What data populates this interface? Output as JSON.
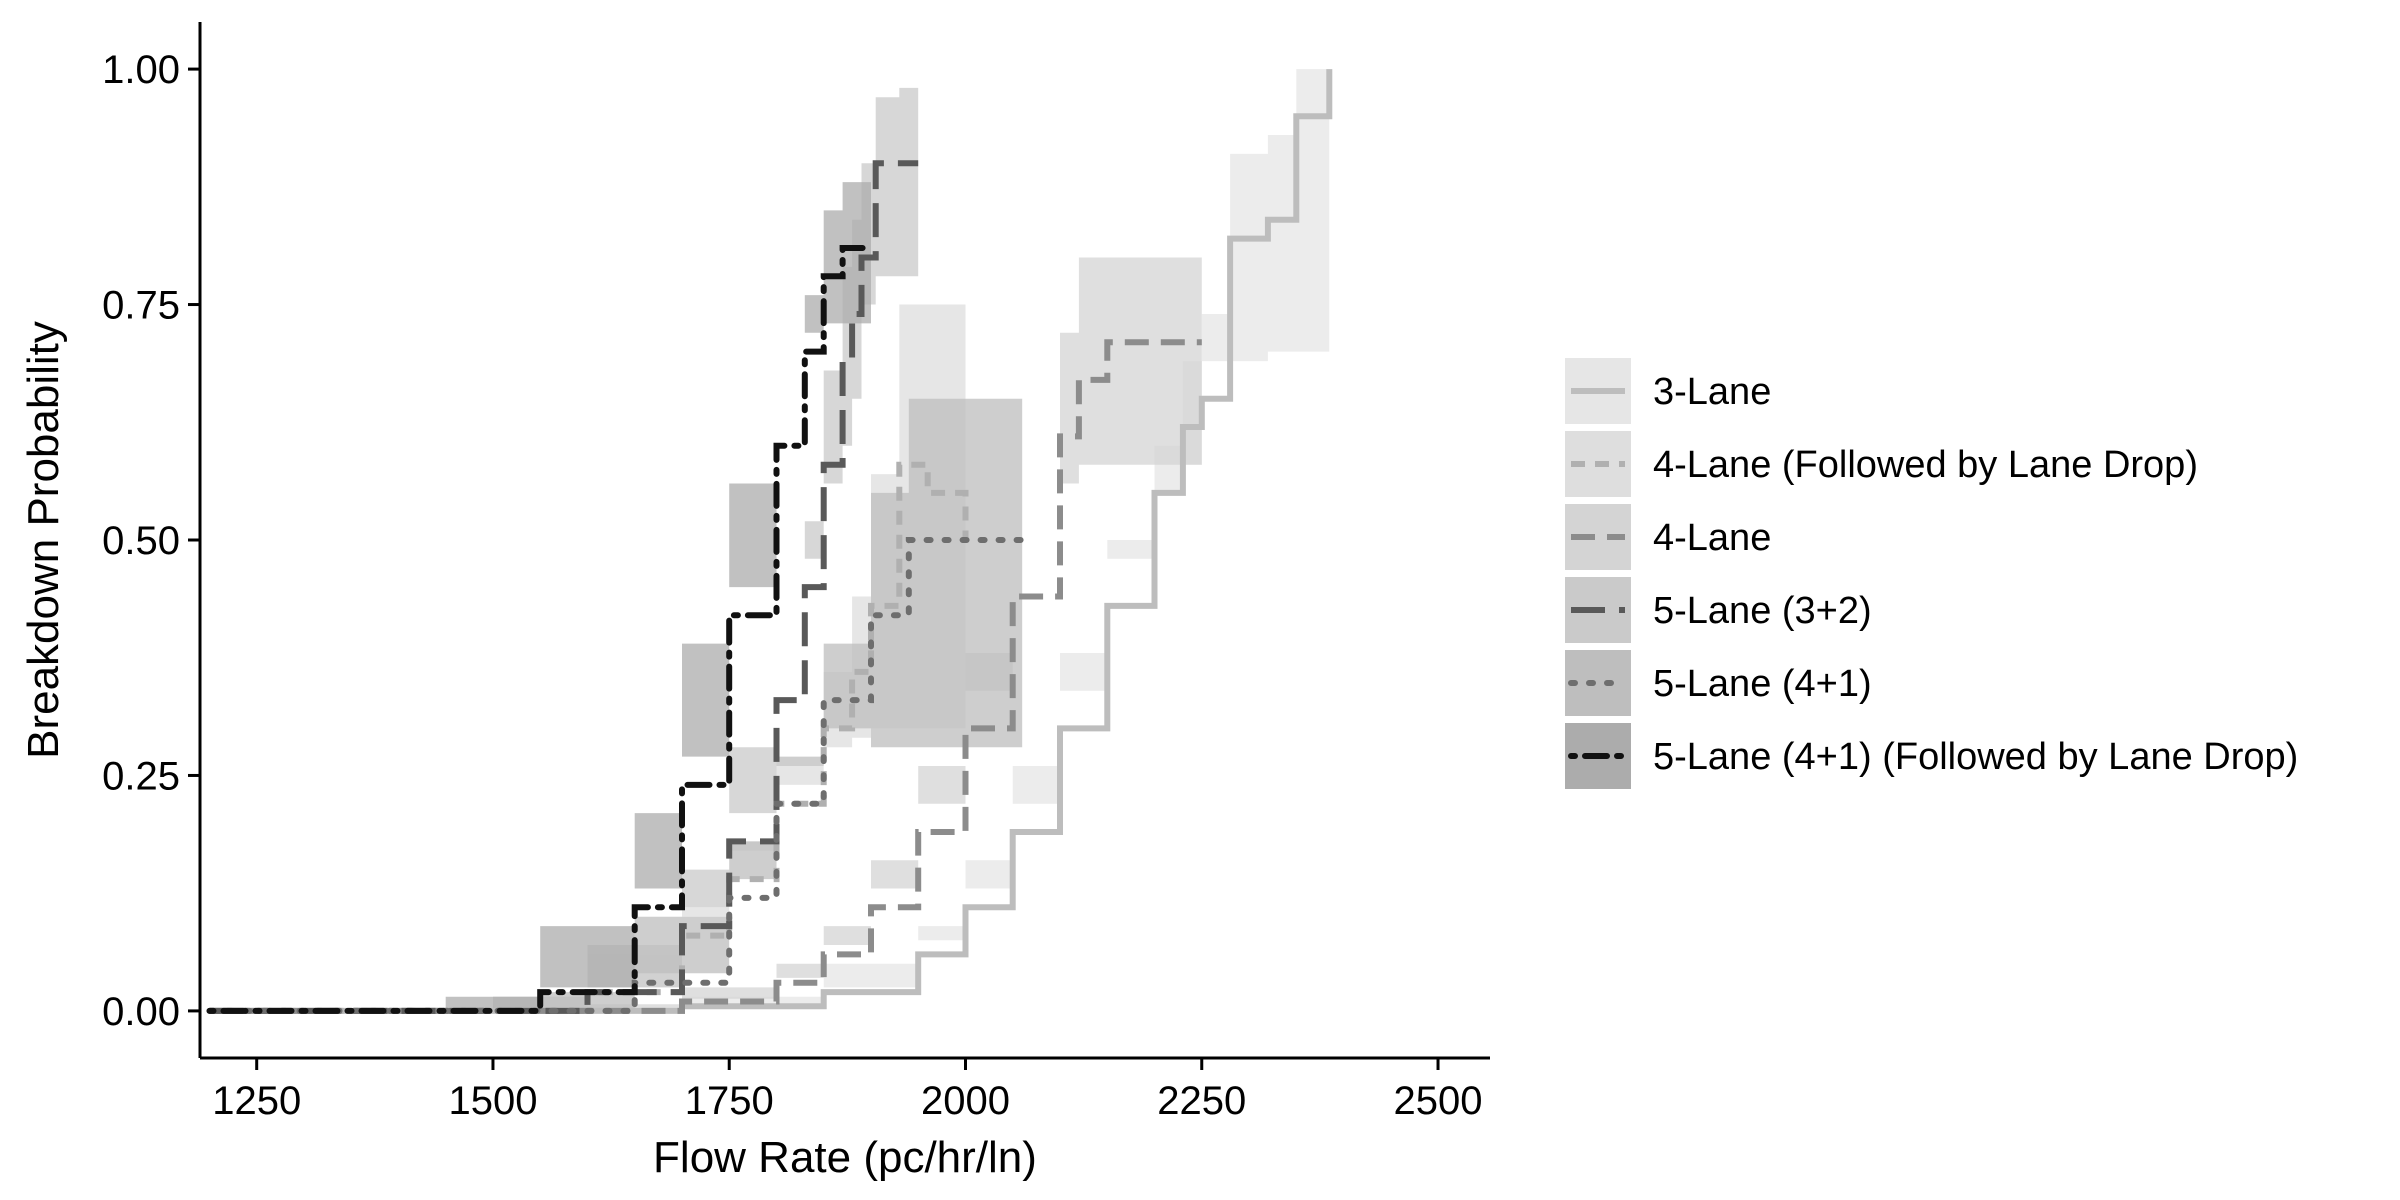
{
  "chart_data": {
    "type": "line",
    "title": "",
    "xlabel": "Flow Rate (pc/hr/ln)",
    "ylabel": "Breakdown Probability",
    "xlim": [
      1190,
      2555
    ],
    "ylim": [
      -0.05,
      1.05
    ],
    "x_ticks": [
      1250,
      1500,
      1750,
      2000,
      2250,
      2500
    ],
    "x_tick_labels": [
      "1250",
      "1500",
      "1750",
      "2000",
      "2250",
      "2500"
    ],
    "y_ticks": [
      0,
      0.25,
      0.5,
      0.75,
      1.0
    ],
    "y_tick_labels": [
      "0.00",
      "0.25",
      "0.50",
      "0.75",
      "1.00"
    ],
    "grid": false,
    "legend_position": "right",
    "series": [
      {
        "name": "3-Lane",
        "line_color": "#bdbdbd",
        "fill_color": "#e6e6e6",
        "dash": "solid",
        "x": [
          1200,
          1500,
          1700,
          1850,
          1950,
          2000,
          2050,
          2100,
          2150,
          2200,
          2230,
          2250,
          2280,
          2320,
          2350,
          2385
        ],
        "y": [
          0.0,
          0.0,
          0.005,
          0.02,
          0.06,
          0.11,
          0.19,
          0.3,
          0.43,
          0.55,
          0.62,
          0.65,
          0.82,
          0.84,
          0.95,
          1.0
        ],
        "lower": [
          0.0,
          0.0,
          0.003,
          0.015,
          0.05,
          0.09,
          0.16,
          0.26,
          0.38,
          0.5,
          0.55,
          0.58,
          0.69,
          0.69,
          0.7,
          0.7
        ],
        "upper": [
          0.0,
          0.001,
          0.007,
          0.025,
          0.075,
          0.13,
          0.22,
          0.34,
          0.48,
          0.6,
          0.69,
          0.74,
          0.91,
          0.93,
          1.0,
          1.0
        ]
      },
      {
        "name": "4-Lane (Followed by Lane Drop)",
        "line_color": "#b0b0b0",
        "fill_color": "#dedede",
        "dash": "short",
        "x": [
          1200,
          1500,
          1600,
          1700,
          1750,
          1800,
          1850,
          1880,
          1900,
          1930,
          1960,
          2000
        ],
        "y": [
          0.0,
          0.0,
          0.02,
          0.08,
          0.14,
          0.22,
          0.3,
          0.36,
          0.43,
          0.58,
          0.55,
          0.5
        ],
        "lower": [
          0.0,
          0.0,
          0.015,
          0.06,
          0.11,
          0.18,
          0.24,
          0.28,
          0.29,
          0.3,
          0.3,
          0.3
        ],
        "upper": [
          0.0,
          0.001,
          0.025,
          0.1,
          0.17,
          0.26,
          0.36,
          0.44,
          0.57,
          0.75,
          0.75,
          0.75
        ]
      },
      {
        "name": "4-Lane",
        "line_color": "#8c8c8c",
        "fill_color": "#d4d4d4",
        "dash": "medium",
        "x": [
          1200,
          1600,
          1700,
          1800,
          1850,
          1900,
          1950,
          2000,
          2050,
          2100,
          2120,
          2150,
          2250
        ],
        "y": [
          0.0,
          0.0,
          0.01,
          0.03,
          0.06,
          0.11,
          0.19,
          0.3,
          0.44,
          0.61,
          0.67,
          0.71,
          0.71
        ],
        "lower": [
          0.0,
          0.0,
          0.007,
          0.025,
          0.05,
          0.09,
          0.16,
          0.26,
          0.38,
          0.5,
          0.56,
          0.58,
          0.58
        ],
        "upper": [
          0.0,
          0.001,
          0.013,
          0.035,
          0.07,
          0.13,
          0.22,
          0.34,
          0.5,
          0.72,
          0.8,
          0.8,
          0.8
        ]
      },
      {
        "name": "5-Lane (3+2)",
        "line_color": "#595959",
        "fill_color": "#cacaca",
        "dash": "long",
        "x": [
          1200,
          1500,
          1600,
          1700,
          1750,
          1800,
          1830,
          1850,
          1870,
          1880,
          1890,
          1905,
          1930,
          1950
        ],
        "y": [
          0.0,
          0.0,
          0.02,
          0.09,
          0.18,
          0.33,
          0.45,
          0.58,
          0.69,
          0.74,
          0.8,
          0.9,
          0.9,
          0.9
        ],
        "lower": [
          0.0,
          0.0,
          0.015,
          0.07,
          0.15,
          0.28,
          0.38,
          0.48,
          0.56,
          0.6,
          0.65,
          0.75,
          0.78,
          0.78
        ],
        "upper": [
          0.0,
          0.001,
          0.025,
          0.11,
          0.21,
          0.38,
          0.52,
          0.68,
          0.79,
          0.84,
          0.9,
          0.97,
          0.98,
          0.98
        ]
      },
      {
        "name": "5-Lane (4+1)",
        "line_color": "#6e6e6e",
        "fill_color": "#bebebe",
        "dash": "dotted",
        "x": [
          1200,
          1550,
          1650,
          1750,
          1800,
          1850,
          1900,
          1940,
          2000,
          2060
        ],
        "y": [
          0.0,
          0.0,
          0.03,
          0.12,
          0.22,
          0.33,
          0.42,
          0.5,
          0.5,
          0.5
        ],
        "lower": [
          0.0,
          0.0,
          0.02,
          0.1,
          0.18,
          0.27,
          0.3,
          0.28,
          0.28,
          0.28
        ],
        "upper": [
          0.0,
          0.001,
          0.04,
          0.14,
          0.26,
          0.39,
          0.55,
          0.65,
          0.65,
          0.65
        ]
      },
      {
        "name": "5-Lane (4+1) (Followed by Lane Drop)",
        "line_color": "#111111",
        "fill_color": "#acacac",
        "dash": "dotdash",
        "x": [
          1200,
          1450,
          1550,
          1650,
          1700,
          1750,
          1800,
          1830,
          1850,
          1870,
          1900
        ],
        "y": [
          0.0,
          0.0,
          0.02,
          0.11,
          0.24,
          0.42,
          0.6,
          0.7,
          0.78,
          0.81,
          0.81
        ],
        "lower": [
          0.0,
          0.0,
          0.015,
          0.09,
          0.21,
          0.39,
          0.56,
          0.65,
          0.72,
          0.73,
          0.73
        ],
        "upper": [
          0.0,
          0.001,
          0.025,
          0.13,
          0.27,
          0.45,
          0.65,
          0.76,
          0.85,
          0.88,
          0.88
        ]
      }
    ]
  }
}
